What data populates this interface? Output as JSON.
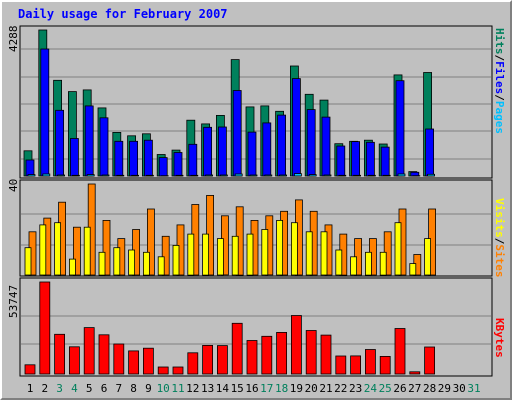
{
  "chart_data": [
    {
      "type": "bar",
      "panel": "pages-files-hits",
      "title": "Daily usage for February 2007",
      "ymax_label": "4288",
      "side_label": {
        "pages": "Pages",
        "files": "Files",
        "hits": "Hits",
        "sep": "/"
      },
      "categories": [
        "1",
        "2",
        "3",
        "4",
        "5",
        "6",
        "7",
        "8",
        "9",
        "10",
        "11",
        "12",
        "13",
        "14",
        "15",
        "16",
        "17",
        "18",
        "19",
        "20",
        "21",
        "22",
        "23",
        "24",
        "25",
        "26",
        "27",
        "28",
        "29",
        "30",
        "31"
      ],
      "weekend_days": [
        "3",
        "4",
        "10",
        "11",
        "17",
        "18",
        "24",
        "25",
        "31"
      ],
      "series": [
        {
          "name": "Hits",
          "color": "#00805c",
          "values": [
            740,
            4288,
            2810,
            2480,
            2530,
            2000,
            1280,
            1180,
            1240,
            630,
            760,
            1640,
            1530,
            1780,
            3420,
            2030,
            2060,
            1900,
            3230,
            2400,
            2230,
            950,
            1020,
            1050,
            940,
            2970,
            130,
            3040,
            0,
            0,
            0
          ]
        },
        {
          "name": "Files",
          "color": "#0000ff",
          "values": [
            470,
            3730,
            1930,
            1100,
            2060,
            1710,
            1020,
            1020,
            1050,
            540,
            690,
            930,
            1430,
            1440,
            2510,
            1290,
            1560,
            1790,
            2860,
            1950,
            1730,
            880,
            1010,
            990,
            850,
            2800,
            110,
            1380,
            0,
            0,
            0
          ]
        },
        {
          "name": "Pages",
          "color": "#00c0ff",
          "values": [
            40,
            60,
            30,
            20,
            40,
            30,
            20,
            20,
            20,
            10,
            20,
            20,
            30,
            30,
            60,
            30,
            30,
            30,
            70,
            40,
            30,
            20,
            20,
            20,
            20,
            60,
            10,
            50,
            0,
            0,
            0
          ]
        }
      ],
      "ylim": [
        0,
        4288
      ]
    },
    {
      "type": "bar",
      "panel": "sites-visits",
      "ymax_label": "40",
      "side_label": {
        "sites": "Sites",
        "visits": "Visits",
        "sep": "/"
      },
      "series": [
        {
          "name": "Visits",
          "color": "#ff8000",
          "values": [
            19,
            25,
            32,
            21,
            40,
            24,
            16,
            20,
            29,
            17,
            22,
            31,
            35,
            26,
            30,
            24,
            26,
            28,
            33,
            28,
            22,
            18,
            16,
            16,
            19,
            29,
            9,
            29,
            0,
            0,
            0
          ]
        },
        {
          "name": "Sites",
          "color": "#ffff00",
          "values": [
            12,
            22,
            23,
            7,
            21,
            10,
            12,
            11,
            10,
            8,
            13,
            18,
            18,
            16,
            17,
            18,
            20,
            24,
            23,
            19,
            19,
            11,
            8,
            10,
            10,
            23,
            5,
            16,
            0,
            0,
            0
          ]
        }
      ],
      "ylim": [
        0,
        40
      ]
    },
    {
      "type": "bar",
      "panel": "kbytes",
      "ymax_label": "53747",
      "side_label": {
        "kbytes": "KBytes"
      },
      "series": [
        {
          "name": "KBytes",
          "color": "#ff0000",
          "values": [
            5400,
            53747,
            23200,
            15900,
            27100,
            22900,
            17500,
            13500,
            15100,
            4100,
            4100,
            12400,
            16700,
            16600,
            29600,
            19600,
            22000,
            24300,
            34200,
            25400,
            22700,
            10500,
            10600,
            14300,
            10300,
            26600,
            1300,
            15800,
            0,
            0,
            0
          ]
        }
      ],
      "ylim": [
        0,
        53747
      ]
    }
  ],
  "colors": {
    "background": "#c0c0c0",
    "grid": "#808080",
    "weekday_label": "#000000",
    "weekend_label": "#00805c"
  }
}
